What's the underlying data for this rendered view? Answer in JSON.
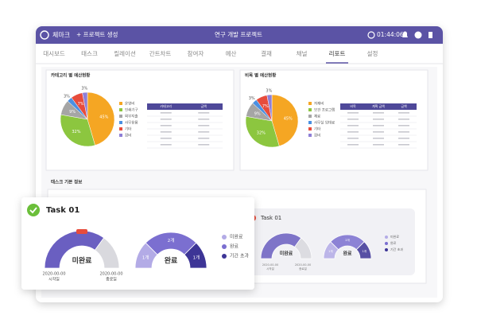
{
  "header": {
    "brand": "체마크",
    "new_project": "+ 프로젝트 생성",
    "project_title": "연구 개발 프로젝트",
    "timer": "01:44:06"
  },
  "tabs": [
    "대시보드",
    "태스크",
    "릴레이션",
    "간트차트",
    "참여자",
    "예산",
    "결재",
    "채널",
    "리포트",
    "설정"
  ],
  "active_tab": 8,
  "category_budget": {
    "title": "카테고리 별 예산현황",
    "values": [
      45,
      32,
      9,
      3,
      7,
      3
    ],
    "value_labels": [
      "45%",
      "32%",
      "9%",
      "3%",
      "7%",
      "3%"
    ],
    "labels": [
      "운영비",
      "인쇄기구",
      "외부지출",
      "사무용품",
      "기타",
      "잡비"
    ],
    "colors": [
      "#f5a623",
      "#8cc63f",
      "#a5a5a5",
      "#4a90e2",
      "#e74c3c",
      "#8e7fd6"
    ],
    "table_header": [
      "카테고리",
      "금액"
    ]
  },
  "item_budget": {
    "title": "비목 별 예산현황",
    "values": [
      45,
      32,
      9,
      3,
      7,
      3
    ],
    "value_labels": [
      "45%",
      "32%",
      "9%",
      "3%",
      "7%",
      "3%"
    ],
    "labels": [
      "자재비",
      "보건 프로그램",
      "재료",
      "사무실 임대료",
      "기타",
      "잡비"
    ],
    "colors": [
      "#f5a623",
      "#8cc63f",
      "#a5a5a5",
      "#4a90e2",
      "#e74c3c",
      "#8e7fd6"
    ],
    "table_header": [
      "비목",
      "계획 금액",
      "금액"
    ]
  },
  "task_section": {
    "title": "태스크 기본 정보"
  },
  "task_card": {
    "title": "Task 01",
    "status": {
      "center": "미완료",
      "values": [
        70,
        30
      ],
      "colors": [
        "#6a5fc1",
        "#d9d9de"
      ]
    },
    "start_date": "2020-00-00",
    "start_label": "시작일",
    "end_date": "2020-00-00",
    "end_label": "종료일",
    "count": {
      "center": "완료",
      "values": [
        1,
        2,
        1
      ],
      "value_labels": [
        "1개",
        "2개",
        "1개"
      ],
      "colors": [
        "#b3abe6",
        "#7b6fd0",
        "#3d3596"
      ]
    },
    "legend": [
      "미완료",
      "완료",
      "기간 초과"
    ]
  }
}
